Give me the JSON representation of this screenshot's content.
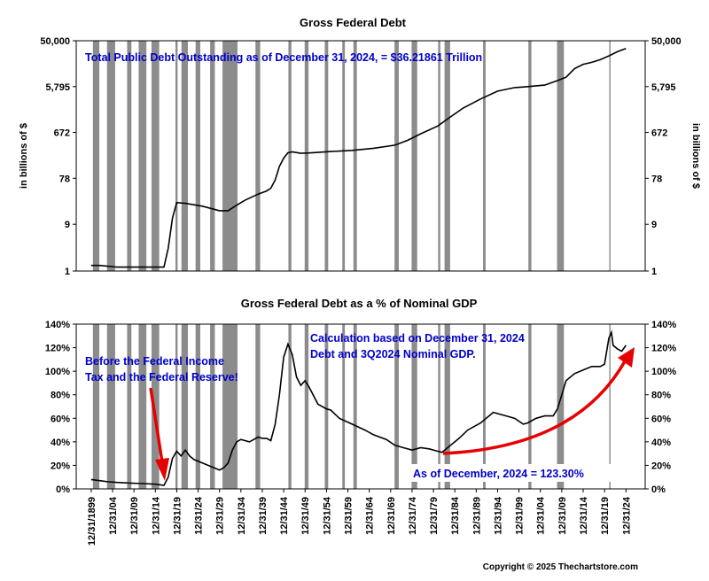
{
  "chart_data": [
    {
      "type": "line",
      "title": "Gross Federal Debt",
      "ylabel": "in billions of $",
      "scale": "log",
      "yticks": [
        1,
        9,
        78,
        672,
        5795,
        50000
      ],
      "ytick_labels": [
        "1",
        "9",
        "78",
        "672",
        "5,795",
        "50,000"
      ],
      "ylim": [
        1,
        50000
      ],
      "annotation": "Total Public Debt Outstanding as of December 31, 2024, = $36.21861 Trillion",
      "series": [
        {
          "x": [
            1899,
            1901,
            1905,
            1910,
            1914,
            1916,
            1917,
            1918,
            1919,
            1921,
            1925,
            1929,
            1931,
            1933,
            1935,
            1938,
            1940,
            1941,
            1942,
            1943,
            1944,
            1945,
            1946,
            1948,
            1950,
            1955,
            1960,
            1965,
            1970,
            1973,
            1976,
            1980,
            1983,
            1986,
            1990,
            1994,
            1998,
            2001,
            2005,
            2008,
            2010,
            2012,
            2014,
            2016,
            2018,
            2020,
            2022,
            2024
          ],
          "y": [
            1.3,
            1.3,
            1.2,
            1.2,
            1.2,
            1.2,
            2.9,
            12,
            25,
            24,
            21,
            17,
            17,
            22,
            28,
            37,
            43,
            49,
            72,
            137,
            201,
            259,
            270,
            252,
            257,
            274,
            290,
            320,
            370,
            466,
            630,
            908,
            1400,
            2120,
            3230,
            4690,
            5530,
            5800,
            6220,
            7670,
            9010,
            13560,
            16530,
            18150,
            20490,
            24510,
            29800,
            34700
          ]
        }
      ],
      "recession_bands": [
        [
          1899.4,
          1900.9
        ],
        [
          1902.7,
          1904.6
        ],
        [
          1907.4,
          1908.4
        ],
        [
          1910.1,
          1911.9
        ],
        [
          1913.1,
          1914.9
        ],
        [
          1918.7,
          1919.2
        ],
        [
          1920.1,
          1921.6
        ],
        [
          1923.4,
          1924.5
        ],
        [
          1926.8,
          1927.9
        ],
        [
          1929.7,
          1933.2
        ],
        [
          1937.4,
          1938.5
        ],
        [
          1945.1,
          1945.8
        ],
        [
          1948.9,
          1949.8
        ],
        [
          1953.6,
          1954.4
        ],
        [
          1957.7,
          1958.3
        ],
        [
          1960.3,
          1961.1
        ],
        [
          1969.9,
          1970.9
        ],
        [
          1973.9,
          1975.2
        ],
        [
          1980.1,
          1980.6
        ],
        [
          1981.6,
          1982.9
        ],
        [
          1990.6,
          1991.2
        ],
        [
          2001.2,
          2001.9
        ],
        [
          2007.9,
          2009.5
        ],
        [
          2020.1,
          2020.4
        ]
      ]
    },
    {
      "type": "line",
      "title": "Gross Federal Debt as a % of Nominal GDP",
      "yticks": [
        0,
        20,
        40,
        60,
        80,
        100,
        120,
        140
      ],
      "ytick_labels": [
        "0%",
        "20%",
        "40%",
        "60%",
        "80%",
        "100%",
        "120%",
        "140%"
      ],
      "ylim": [
        0,
        140
      ],
      "xtick_labels": [
        "12/31/1899",
        "12/31/04",
        "12/31/09",
        "12/31/14",
        "12/31/19",
        "12/31/24",
        "12/31/29",
        "12/31/34",
        "12/31/39",
        "12/31/44",
        "12/31/49",
        "12/31/54",
        "12/31/59",
        "12/31/64",
        "12/31/69",
        "12/31/74",
        "12/31/79",
        "12/31/84",
        "12/31/89",
        "12/31/94",
        "12/31/99",
        "12/31/04",
        "12/31/09",
        "12/31/14",
        "12/31/19",
        "12/31/24"
      ],
      "xtick_values": [
        1899,
        1904,
        1909,
        1914,
        1919,
        1924,
        1929,
        1934,
        1939,
        1944,
        1949,
        1954,
        1959,
        1964,
        1969,
        1974,
        1979,
        1984,
        1989,
        1994,
        1999,
        2004,
        2009,
        2014,
        2019,
        2024
      ],
      "annotations": {
        "left": [
          "Before the Federal Income",
          "Tax and the Federal Reserve!"
        ],
        "right": [
          "Calculation based on December 31, 2024",
          "Debt and 3Q2024 Nominal GDP."
        ],
        "bottom": "As of  December, 2024 = 123.30%"
      },
      "series": [
        {
          "x": [
            1899,
            1901,
            1903,
            1905,
            1908,
            1911,
            1914,
            1916,
            1917,
            1918,
            1919,
            1920,
            1921,
            1922,
            1923,
            1925,
            1927,
            1929,
            1930,
            1931,
            1932,
            1933,
            1934,
            1936,
            1938,
            1939,
            1940,
            1941,
            1942,
            1943,
            1944,
            1945,
            1946,
            1947,
            1948,
            1949,
            1950,
            1952,
            1954,
            1955,
            1957,
            1960,
            1963,
            1965,
            1968,
            1970,
            1972,
            1974,
            1976,
            1978,
            1980,
            1981,
            1983,
            1985,
            1987,
            1990,
            1993,
            1996,
            1998,
            2000,
            2001,
            2003,
            2005,
            2007,
            2008,
            2009,
            2010,
            2012,
            2014,
            2016,
            2018,
            2019,
            2020,
            2020.6,
            2021,
            2022,
            2023,
            2024
          ],
          "y": [
            8,
            7,
            6,
            5.5,
            5,
            4.5,
            4,
            3,
            10,
            26,
            32,
            28,
            33,
            28,
            25,
            22,
            19,
            16,
            18,
            22,
            33,
            40,
            42,
            40,
            44,
            43,
            43,
            41,
            55,
            80,
            112,
            123,
            114,
            95,
            88,
            92,
            86,
            72,
            68,
            67,
            60,
            55,
            50,
            46,
            42,
            37,
            35,
            33,
            35,
            34,
            32,
            31,
            37,
            43,
            50,
            56,
            65,
            62,
            60,
            55,
            56,
            60,
            62,
            62,
            68,
            80,
            92,
            98,
            101,
            104,
            104,
            106,
            128,
            133,
            122,
            119,
            117,
            122
          ]
        }
      ],
      "recession_bands": [
        [
          1899.4,
          1900.9
        ],
        [
          1902.7,
          1904.6
        ],
        [
          1907.4,
          1908.4
        ],
        [
          1910.1,
          1911.9
        ],
        [
          1913.1,
          1914.9
        ],
        [
          1918.7,
          1919.2
        ],
        [
          1920.1,
          1921.6
        ],
        [
          1923.4,
          1924.5
        ],
        [
          1926.8,
          1927.9
        ],
        [
          1929.7,
          1933.2
        ],
        [
          1937.4,
          1938.5
        ],
        [
          1945.1,
          1945.8
        ],
        [
          1948.9,
          1949.8
        ],
        [
          1953.6,
          1954.4
        ],
        [
          1957.7,
          1958.3
        ],
        [
          1960.3,
          1961.1
        ],
        [
          1969.9,
          1970.9
        ],
        [
          1973.9,
          1975.2
        ],
        [
          1980.1,
          1980.6
        ],
        [
          1981.6,
          1982.9
        ],
        [
          1990.6,
          1991.2
        ],
        [
          2001.2,
          2001.9
        ],
        [
          2007.9,
          2009.5
        ],
        [
          2020.1,
          2020.4
        ]
      ]
    }
  ],
  "footer": {
    "copyright": "Copyright © 2025 Thechartstore.com"
  },
  "colors": {
    "recession": "#8c8c8c",
    "line": "#000000",
    "annotation": "#0000cc",
    "arrow": "#e60000"
  }
}
